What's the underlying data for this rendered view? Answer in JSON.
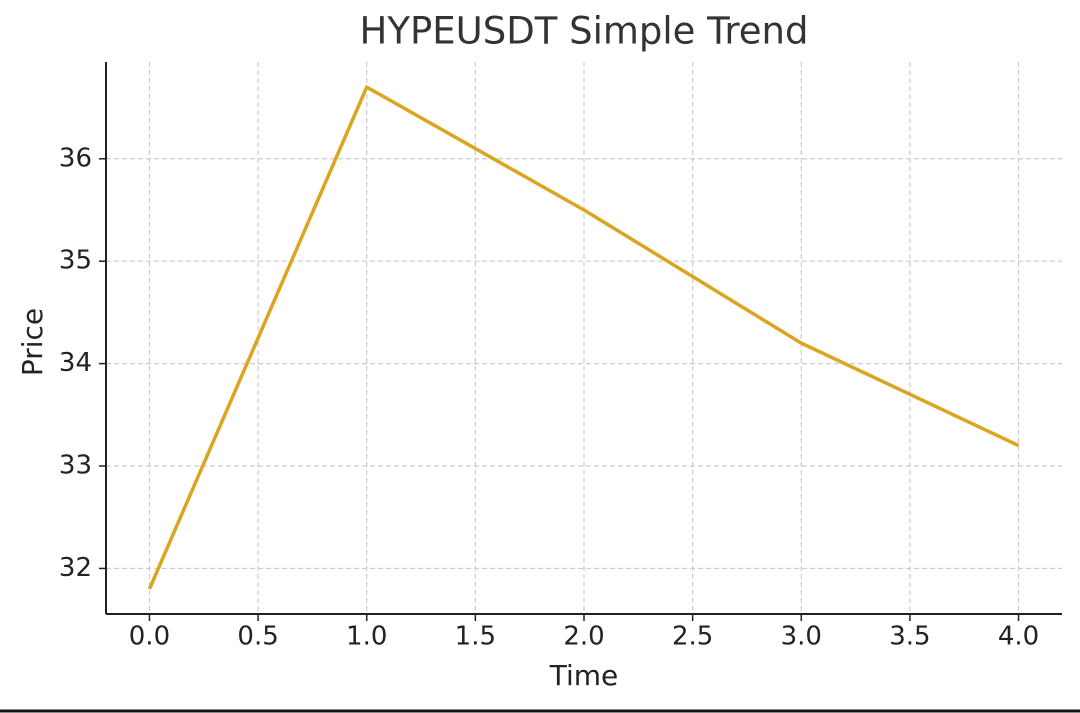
{
  "chart_data": {
    "type": "line",
    "title": "HYPEUSDT Simple Trend",
    "x_label": "Time",
    "y_label": "Price",
    "x": [
      0,
      1,
      2,
      3,
      4
    ],
    "series": [
      {
        "name": "HYPEUSDT",
        "color": "#daa520",
        "values": [
          31.8,
          36.7,
          35.5,
          34.2,
          33.2
        ]
      }
    ],
    "xlim": [
      -0.2,
      4.2
    ],
    "xticks": [
      {
        "value": 0,
        "label": "0.0"
      },
      0.5,
      {
        "value": 1,
        "label": "1.0"
      },
      1.5,
      {
        "value": 2,
        "label": "2.0"
      },
      2.5,
      {
        "value": 3,
        "label": "3.0"
      },
      3.5,
      {
        "value": 4,
        "label": "4.0"
      }
    ],
    "ylim": [
      31.555,
      36.945
    ],
    "yticks": [
      32,
      33,
      34,
      35,
      36
    ],
    "grid": true,
    "legend": false
  }
}
